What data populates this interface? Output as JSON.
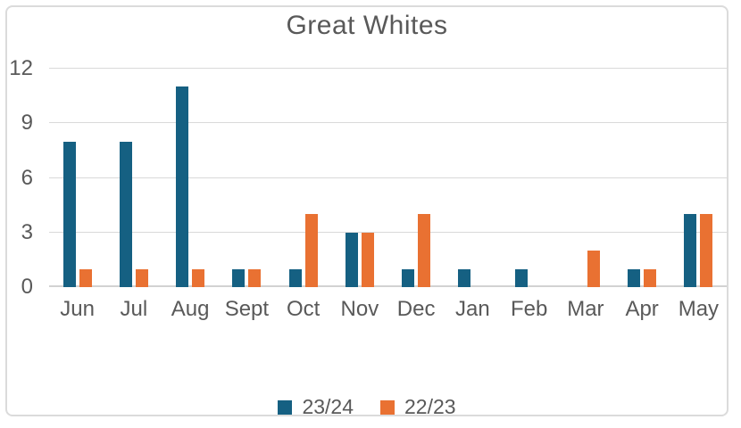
{
  "chart_data": {
    "type": "bar",
    "title": "Great Whites",
    "categories": [
      "Jun",
      "Jul",
      "Aug",
      "Sept",
      "Oct",
      "Nov",
      "Dec",
      "Jan",
      "Feb",
      "Mar",
      "Apr",
      "May"
    ],
    "series": [
      {
        "name": "23/24",
        "color": "#156082",
        "values": [
          8,
          8,
          11,
          1,
          1,
          3,
          1,
          1,
          1,
          0,
          1,
          4
        ]
      },
      {
        "name": "22/23",
        "color": "#E97132",
        "values": [
          1,
          1,
          1,
          1,
          4,
          3,
          4,
          0,
          0,
          2,
          1,
          4
        ]
      }
    ],
    "xlabel": "",
    "ylabel": "",
    "ylim": [
      0,
      12
    ],
    "yticks": [
      0,
      3,
      6,
      9,
      12
    ],
    "grid": "horizontal",
    "legend_position": "bottom"
  },
  "palette": {
    "series_1": "#156082",
    "series_2": "#E97132",
    "gridline": "#d9d9d9",
    "axis_line": "#d2d2d2",
    "text": "#595959",
    "card_border": "#dbdbdb",
    "background": "#ffffff"
  }
}
